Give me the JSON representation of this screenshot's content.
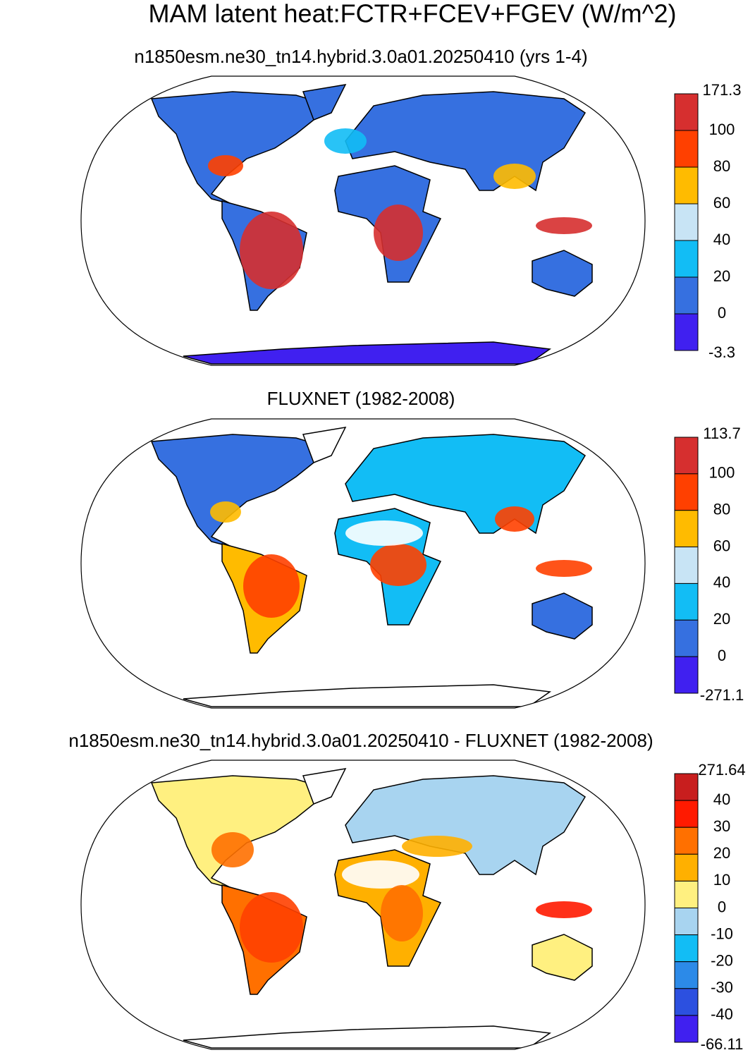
{
  "title": "MAM latent heat:FCTR+FCEV+FGEV (W/m^2)",
  "panels": [
    {
      "subtitle": "n1850esm.ne30_tn14.hybrid.3.0a01.20250410 (yrs 1-4)",
      "colorbar": {
        "levels": [
          171.3,
          100,
          80,
          60,
          40,
          20,
          0,
          -3.3
        ],
        "colors": [
          "#d62f2f",
          "#ff4000",
          "#ffbb00",
          "#c8e4f5",
          "#12bdf5",
          "#3670e0",
          "#4020f0"
        ]
      }
    },
    {
      "subtitle": "FLUXNET (1982-2008)",
      "colorbar": {
        "levels": [
          113.7,
          100,
          80,
          60,
          40,
          20,
          0,
          -271.1
        ],
        "colors": [
          "#d62f2f",
          "#ff4000",
          "#ffbb00",
          "#c8e4f5",
          "#12bdf5",
          "#3670e0",
          "#4020f0"
        ]
      }
    },
    {
      "subtitle": "n1850esm.ne30_tn14.hybrid.3.0a01.20250410 - FLUXNET (1982-2008)",
      "colorbar": {
        "levels": [
          271.64,
          40,
          30,
          20,
          10,
          0,
          -10,
          -20,
          -30,
          -40,
          -66.11
        ],
        "colors": [
          "#c81e1e",
          "#ff1a00",
          "#ff7000",
          "#ffb000",
          "#fff080",
          "#a8d4f0",
          "#12bdf5",
          "#2c8ae8",
          "#2c50e0",
          "#4020f0"
        ]
      }
    }
  ]
}
